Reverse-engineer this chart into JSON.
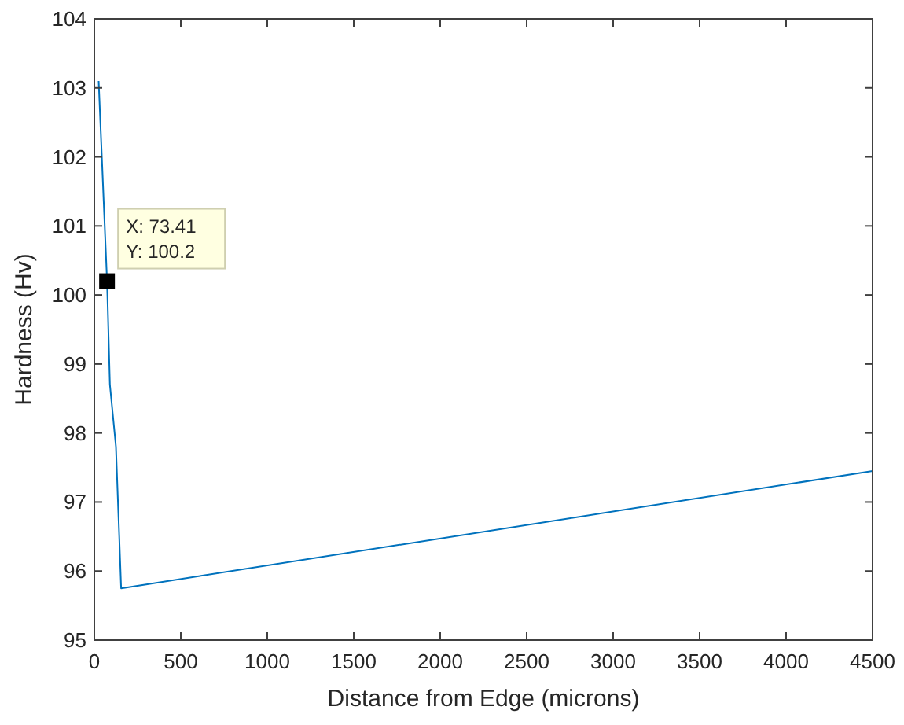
{
  "chart_data": {
    "type": "line",
    "xlabel": "Distance from Edge (microns)",
    "ylabel": "Hardness (Hv)",
    "xlim": [
      0,
      4500
    ],
    "xticks": [
      0,
      500,
      1000,
      1500,
      2000,
      2500,
      3000,
      3500,
      4000,
      4500
    ],
    "ylim": [
      95,
      104
    ],
    "yticks": [
      95,
      96,
      97,
      98,
      99,
      100,
      101,
      102,
      103,
      104
    ],
    "grid": false,
    "marker": "none",
    "line_style": "solid",
    "series": [
      {
        "color": "#0072bd",
        "x": [
          25,
          73.41,
          90,
          125,
          155,
          4500
        ],
        "values": [
          103.1,
          100.2,
          98.7,
          97.8,
          95.75,
          97.45
        ]
      }
    ],
    "annotations": [
      {
        "text": "X: 73.41\nY: 100.2",
        "x": 73.41,
        "y": 100.2
      }
    ]
  }
}
